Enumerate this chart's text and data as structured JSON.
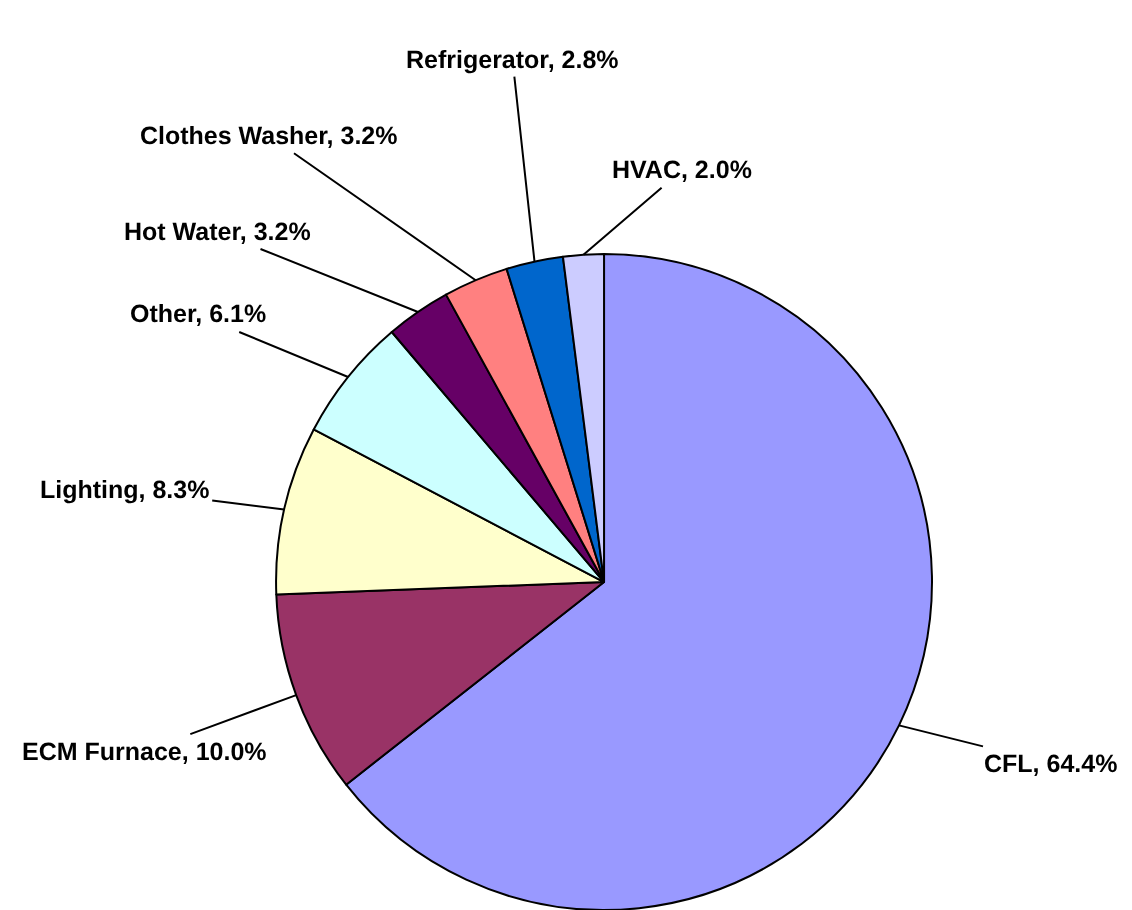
{
  "chart_data": {
    "type": "pie",
    "categories": [
      "CFL",
      "ECM Furnace",
      "Lighting",
      "Other",
      "Hot Water",
      "Clothes Washer",
      "Refrigerator",
      "HVAC"
    ],
    "values": [
      64.4,
      10.0,
      8.3,
      6.1,
      3.2,
      3.2,
      2.8,
      2.0
    ],
    "value_labels": [
      "64.4%",
      "10.0%",
      "8.3%",
      "6.1%",
      "3.2%",
      "3.2%",
      "2.8%",
      "2.0%"
    ],
    "colors": [
      "#9999ff",
      "#993366",
      "#ffffcc",
      "#ccffff",
      "#660066",
      "#ff8080",
      "#0066cc",
      "#ccccff"
    ],
    "legend": false
  }
}
